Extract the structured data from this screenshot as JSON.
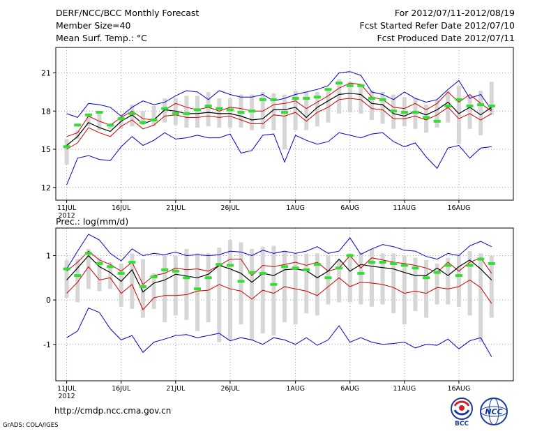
{
  "header": {
    "title": "DERF/NCC/BCC Monthly Forecast",
    "member": "Member Size=40",
    "variable": "Mean Surf. Temp.: °C",
    "period": "For 2012/07/11-2012/08/19",
    "started": "Fcst Started Refer Date 2012/07/10",
    "produced": "Fcst Produced Date 2012/07/11"
  },
  "footer": {
    "url": "http://cmdp.ncc.cma.gov.cn",
    "credit": "GrADS: COLA/IGES",
    "logo_bcc": "BCC",
    "logo_ncc": "NCC"
  },
  "colors": {
    "envelope": "#0000cc",
    "spread": "#cc0000",
    "mean": "#000000",
    "box": "#d6d6d6",
    "observed": "#33dd33"
  },
  "chart_data": [
    {
      "type": "line",
      "title": "Mean Surf. Temp.: °C",
      "ylabel": "°C",
      "ylim": [
        11,
        23
      ],
      "yticks": [
        12,
        15,
        18,
        21
      ],
      "yticklabels": [
        "12",
        "15",
        "18",
        "21"
      ],
      "xlim": [
        -1,
        41
      ],
      "xticks": [
        0,
        5,
        10,
        15,
        21,
        26,
        31,
        36
      ],
      "xticklabels": [
        "11JUL",
        "16JUL",
        "21JUL",
        "26JUL",
        "1AUG",
        "6AUG",
        "11AUG",
        "16AUG"
      ],
      "xsublabel": "2012",
      "grid": true,
      "x": [
        0,
        1,
        2,
        3,
        4,
        5,
        6,
        7,
        8,
        9,
        10,
        11,
        12,
        13,
        14,
        15,
        16,
        17,
        18,
        19,
        20,
        21,
        22,
        23,
        24,
        25,
        26,
        27,
        28,
        29,
        30,
        31,
        32,
        33,
        34,
        35,
        36,
        37,
        38,
        39
      ],
      "series": [
        {
          "name": "max",
          "values": [
            17.8,
            17.5,
            18.6,
            18.5,
            18.3,
            17.6,
            18.3,
            18.8,
            18.5,
            18.7,
            19.2,
            19.6,
            19.5,
            18.9,
            19.6,
            19.3,
            19.1,
            19.1,
            19.3,
            18.8,
            19.0,
            19.3,
            19.5,
            19.7,
            20.0,
            21.0,
            21.1,
            20.8,
            19.5,
            19.3,
            18.9,
            19.5,
            19.0,
            18.7,
            18.9,
            19.7,
            20.4,
            19.0,
            19.3,
            18.1
          ]
        },
        {
          "name": "upper",
          "values": [
            16.0,
            16.3,
            17.6,
            17.2,
            16.9,
            17.5,
            18.0,
            17.4,
            17.3,
            18.1,
            18.6,
            18.3,
            18.1,
            18.3,
            18.0,
            18.3,
            18.2,
            18.0,
            18.0,
            18.5,
            18.6,
            18.8,
            18.2,
            18.7,
            19.2,
            19.8,
            20.2,
            20.1,
            19.1,
            18.9,
            18.3,
            18.2,
            18.6,
            18.1,
            18.6,
            19.5,
            18.7,
            19.3,
            18.6,
            18.0
          ]
        },
        {
          "name": "mean",
          "values": [
            15.3,
            16.0,
            17.1,
            16.7,
            16.4,
            17.2,
            17.7,
            17.0,
            17.3,
            18.1,
            18.0,
            17.8,
            17.8,
            17.9,
            17.8,
            17.8,
            17.6,
            17.3,
            17.4,
            18.1,
            18.1,
            18.3,
            17.5,
            18.3,
            18.8,
            19.3,
            19.4,
            19.3,
            18.6,
            18.5,
            17.8,
            17.6,
            18.0,
            17.7,
            18.1,
            18.7,
            17.8,
            18.3,
            17.7,
            18.3
          ]
        },
        {
          "name": "lower",
          "values": [
            15.0,
            15.5,
            16.7,
            16.3,
            16.0,
            16.8,
            17.3,
            16.6,
            16.9,
            17.6,
            17.7,
            17.5,
            17.5,
            17.6,
            17.5,
            17.6,
            17.3,
            17.0,
            17.0,
            17.7,
            17.6,
            17.9,
            17.2,
            17.9,
            18.3,
            18.9,
            19.0,
            18.9,
            18.2,
            18.1,
            17.4,
            17.4,
            17.6,
            17.3,
            17.7,
            18.3,
            17.4,
            17.8,
            17.3,
            17.8
          ]
        },
        {
          "name": "min",
          "values": [
            12.2,
            14.3,
            14.5,
            14.2,
            14.1,
            15.2,
            16.0,
            15.3,
            15.7,
            16.3,
            15.8,
            15.9,
            16.1,
            15.9,
            15.9,
            16.2,
            14.7,
            14.9,
            16.1,
            16.2,
            14.0,
            16.1,
            15.7,
            15.4,
            15.6,
            16.3,
            16.1,
            15.9,
            16.2,
            16.3,
            15.6,
            15.2,
            15.5,
            14.4,
            13.5,
            15.1,
            15.3,
            14.3,
            15.1,
            15.2
          ]
        },
        {
          "name": "box_top",
          "values": [
            15.8,
            16.5,
            17.8,
            18.0,
            17.0,
            17.6,
            18.5,
            18.0,
            18.4,
            19.0,
            19.0,
            19.2,
            19.2,
            19.5,
            19.0,
            19.0,
            19.3,
            19.3,
            19.5,
            19.4,
            19.3,
            19.6,
            19.5,
            19.5,
            19.6,
            20.5,
            20.3,
            20.0,
            19.6,
            19.5,
            19.3,
            19.1,
            19.0,
            18.5,
            18.9,
            19.6,
            20.0,
            19.3,
            19.6,
            20.3
          ]
        },
        {
          "name": "box_bottom",
          "values": [
            13.8,
            15.8,
            16.8,
            16.5,
            16.6,
            16.6,
            16.8,
            16.9,
            16.8,
            17.1,
            16.9,
            16.7,
            16.7,
            16.8,
            16.7,
            16.7,
            16.7,
            16.5,
            16.6,
            16.5,
            15.0,
            16.5,
            16.5,
            16.8,
            17.1,
            17.8,
            17.9,
            17.8,
            17.3,
            17.0,
            16.6,
            16.8,
            16.6,
            16.3,
            16.7,
            17.1,
            15.4,
            16.6,
            16.1,
            17.7
          ]
        },
        {
          "name": "observed",
          "values": [
            15.2,
            16.9,
            17.7,
            17.9,
            16.9,
            17.4,
            17.8,
            17.1,
            17.3,
            18.2,
            17.8,
            17.8,
            18.1,
            18.4,
            18.2,
            18.1,
            17.9,
            18.0,
            18.9,
            18.9,
            17.9,
            19.0,
            19.0,
            19.1,
            19.7,
            20.2,
            20.0,
            20.0,
            19.0,
            18.9,
            18.0,
            17.9,
            17.9,
            17.5,
            17.2,
            18.4,
            18.9,
            18.4,
            18.5,
            18.4
          ]
        }
      ]
    },
    {
      "type": "line",
      "title": "Prec.: log(mm/d)",
      "ylabel": "log(mm/d)",
      "ylim": [
        -1.82,
        1.62
      ],
      "yticks": [
        -1,
        0,
        1
      ],
      "yticklabels": [
        "-1",
        "0",
        "1"
      ],
      "xlim": [
        -1,
        41
      ],
      "xticks": [
        0,
        5,
        10,
        15,
        21,
        26,
        31,
        36
      ],
      "xticklabels": [
        "11JUL",
        "16JUL",
        "21JUL",
        "26JUL",
        "1AUG",
        "6AUG",
        "11AUG",
        "16AUG"
      ],
      "xsublabel": "2012",
      "grid": true,
      "x": [
        0,
        1,
        2,
        3,
        4,
        5,
        6,
        7,
        8,
        9,
        10,
        11,
        12,
        13,
        14,
        15,
        16,
        17,
        18,
        19,
        20,
        21,
        22,
        23,
        24,
        25,
        26,
        27,
        28,
        29,
        30,
        31,
        32,
        33,
        34,
        35,
        36,
        37,
        38,
        39
      ],
      "series": [
        {
          "name": "max",
          "values": [
            0.7,
            1.1,
            1.48,
            1.35,
            1.05,
            0.88,
            1.15,
            1.0,
            1.05,
            1.02,
            1.08,
            1.0,
            1.02,
            1.0,
            1.02,
            1.1,
            1.08,
            1.0,
            1.12,
            1.05,
            1.1,
            1.05,
            1.1,
            1.2,
            1.05,
            1.1,
            1.4,
            1.03,
            1.15,
            1.25,
            1.2,
            1.12,
            1.1,
            0.98,
            0.92,
            1.05,
            1.0,
            1.22,
            1.32,
            1.2
          ]
        },
        {
          "name": "upper",
          "values": [
            0.65,
            0.85,
            1.1,
            0.9,
            0.8,
            0.65,
            0.85,
            0.35,
            0.55,
            0.6,
            0.72,
            0.68,
            0.7,
            0.65,
            0.78,
            0.92,
            0.92,
            0.55,
            0.78,
            0.75,
            0.8,
            0.85,
            0.78,
            0.85,
            0.65,
            0.72,
            1.0,
            0.72,
            0.95,
            0.9,
            0.85,
            0.82,
            0.78,
            0.72,
            0.62,
            0.85,
            0.65,
            0.85,
            0.95,
            0.6
          ]
        },
        {
          "name": "mean",
          "values": [
            0.45,
            0.72,
            1.0,
            0.75,
            0.62,
            0.42,
            0.68,
            0.18,
            0.38,
            0.45,
            0.58,
            0.54,
            0.5,
            0.58,
            0.78,
            0.7,
            0.6,
            0.4,
            0.6,
            0.55,
            0.68,
            0.7,
            0.66,
            0.5,
            0.65,
            0.92,
            0.65,
            0.8,
            0.76,
            0.73,
            0.7,
            0.62,
            0.55,
            0.55,
            0.72,
            0.55,
            0.75,
            0.9,
            0.7,
            0.45
          ]
        },
        {
          "name": "lower",
          "values": [
            0.15,
            0.4,
            0.75,
            0.45,
            0.5,
            0.15,
            0.35,
            -0.22,
            0.05,
            0.1,
            0.1,
            0.12,
            0.2,
            0.22,
            0.35,
            0.25,
            0.2,
            0.02,
            0.22,
            0.15,
            0.3,
            0.25,
            0.2,
            0.1,
            0.3,
            0.5,
            0.3,
            0.4,
            0.38,
            0.35,
            0.28,
            0.15,
            0.2,
            0.15,
            0.28,
            0.25,
            0.3,
            0.45,
            0.28,
            -0.08
          ]
        },
        {
          "name": "min",
          "values": [
            -0.85,
            -0.7,
            -0.18,
            -0.28,
            -0.65,
            -0.9,
            -0.8,
            -1.18,
            -0.95,
            -0.88,
            -0.8,
            -0.78,
            -0.85,
            -0.8,
            -0.75,
            -0.92,
            -0.85,
            -0.9,
            -1.0,
            -0.85,
            -0.9,
            -1.0,
            -0.85,
            -1.02,
            -0.9,
            -0.58,
            -0.95,
            -0.85,
            -0.95,
            -1.0,
            -0.98,
            -0.95,
            -1.08,
            -1.0,
            -1.02,
            -0.88,
            -1.1,
            -0.92,
            -0.85,
            -1.28
          ]
        },
        {
          "name": "box_top",
          "values": [
            0.9,
            0.92,
            1.15,
            0.95,
            0.85,
            0.82,
            1.05,
            0.92,
            0.6,
            1.0,
            1.0,
            1.15,
            1.05,
            1.05,
            1.18,
            1.35,
            1.3,
            1.15,
            1.2,
            1.22,
            1.1,
            1.05,
            1.05,
            1.05,
            1.0,
            0.9,
            1.05,
            1.05,
            1.15,
            1.05,
            1.05,
            1.0,
            0.95,
            0.9,
            0.82,
            0.95,
            1.0,
            1.1,
            1.05,
            1.0
          ]
        },
        {
          "name": "box_bottom",
          "values": [
            0.05,
            -0.05,
            0.25,
            0.2,
            0.25,
            -0.15,
            -0.2,
            -0.4,
            -0.2,
            -0.5,
            -0.35,
            -0.45,
            -0.7,
            -0.5,
            -0.95,
            -0.9,
            -0.55,
            -0.9,
            -0.75,
            -0.8,
            -0.5,
            -0.55,
            -0.3,
            -0.35,
            -0.1,
            -0.05,
            -0.05,
            -0.1,
            -0.15,
            -0.1,
            -0.3,
            -0.55,
            -0.25,
            -0.4,
            -0.1,
            -0.1,
            -0.15,
            -0.35,
            -0.95,
            -0.4
          ]
        },
        {
          "name": "observed",
          "values": [
            0.7,
            0.55,
            1.05,
            0.82,
            0.75,
            0.6,
            0.85,
            0.3,
            0.52,
            0.68,
            0.65,
            0.5,
            0.25,
            0.5,
            0.8,
            0.78,
            0.42,
            0.62,
            0.6,
            0.35,
            0.75,
            0.72,
            0.68,
            0.8,
            0.5,
            0.72,
            1.0,
            0.6,
            0.85,
            0.85,
            0.82,
            0.78,
            0.72,
            0.5,
            0.62,
            0.78,
            0.55,
            0.78,
            0.92,
            0.82
          ]
        }
      ]
    }
  ]
}
